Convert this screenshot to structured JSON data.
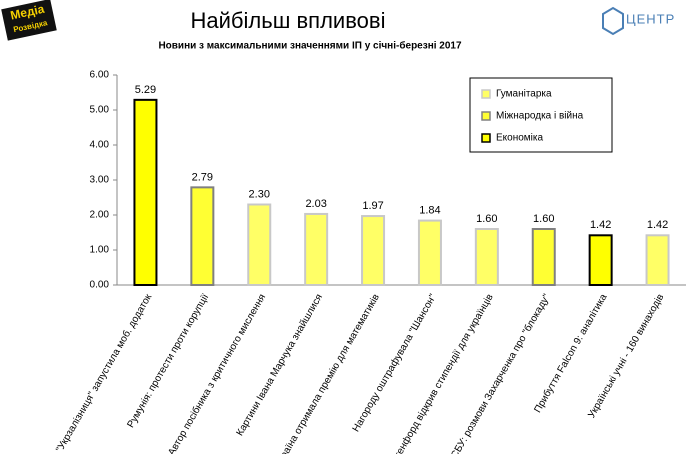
{
  "logos": {
    "left": [
      "Медіа",
      "Розвідка"
    ],
    "right": "ЦЕНТР"
  },
  "chart_data": {
    "type": "bar",
    "title": "Найбільш впливові",
    "subtitle": "Новини з максимальними значеннями ІП у січні-березні 2017",
    "categories": [
      "\"Укрзалізниця\" запустила моб. додаток",
      "Румунія: протести проти корупції",
      "Автор посібника з критичного мислення",
      "Картини Івана Марчука знайшлися",
      "Україна отримала премію для математиків",
      "Нагороду оштрафувала \"Шансон\"",
      "Стенфорд відкрив стипендії для українців",
      "СБУ: розмови Захарченка про \"блокаду\"",
      "Прибуття Falcon 9: аналітика",
      "Українські учні - 160 винаходів"
    ],
    "series": [
      {
        "name": "Гуманітарка",
        "color": "#ffff66",
        "border": "#c8c8c8",
        "values": [
          null,
          null,
          2.3,
          2.03,
          1.97,
          1.84,
          1.6,
          null,
          null,
          1.42
        ],
        "value_labels": [
          null,
          null,
          "2.30",
          "2.03",
          "1.97",
          "1.84",
          "1.60",
          null,
          null,
          "1.42"
        ]
      },
      {
        "name": "Міжнародка і війна",
        "color": "#ffff33",
        "border": "#808080",
        "values": [
          null,
          2.79,
          null,
          null,
          null,
          null,
          null,
          1.6,
          null,
          null
        ],
        "value_labels": [
          null,
          "2.79",
          null,
          null,
          null,
          null,
          null,
          "1.60",
          null,
          null
        ]
      },
      {
        "name": "Економіка",
        "color": "#ffff00",
        "border": "#000000",
        "values": [
          5.29,
          null,
          null,
          null,
          null,
          null,
          null,
          null,
          1.42,
          null
        ],
        "value_labels": [
          "5.29",
          null,
          null,
          null,
          null,
          null,
          null,
          null,
          "1.42",
          null
        ]
      }
    ],
    "ylim": [
      0,
      6
    ],
    "yticks": [
      {
        "value": 0,
        "label": "0.00"
      },
      {
        "value": 1,
        "label": "1.00"
      },
      {
        "value": 2,
        "label": "2.00"
      },
      {
        "value": 3,
        "label": "3.00"
      },
      {
        "value": 4,
        "label": "4.00"
      },
      {
        "value": 5,
        "label": "5.00"
      },
      {
        "value": 6,
        "label": "6.00"
      }
    ],
    "grid": false,
    "legend": "top-right"
  }
}
